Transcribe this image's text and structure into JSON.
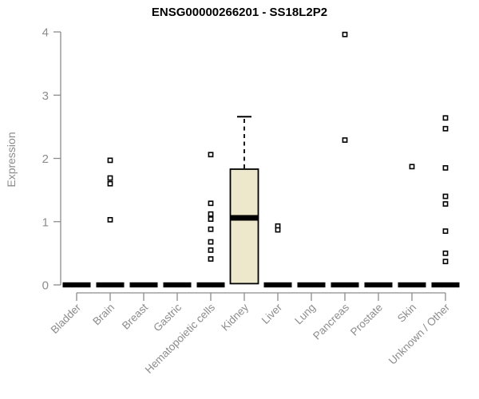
{
  "chart_data": {
    "type": "boxplot",
    "title": "ENSG00000266201 - SS18L2P2",
    "ylabel": "Expression",
    "xlabel": "",
    "ylim": [
      0,
      4
    ],
    "yticks": [
      0,
      1,
      2,
      3,
      4
    ],
    "grid": false,
    "legend": "none",
    "categories": [
      "Bladder",
      "Brain",
      "Breast",
      "Gastric",
      "Hematopoietic cells",
      "Kidney",
      "Liver",
      "Lung",
      "Pancreas",
      "Prostate",
      "Skin",
      "Unknown / Other"
    ],
    "series": [
      {
        "category": "Bladder",
        "q1": 0,
        "median": 0,
        "q3": 0,
        "whisker_low": 0,
        "whisker_high": 0,
        "outliers": []
      },
      {
        "category": "Brain",
        "q1": 0,
        "median": 0,
        "q3": 0,
        "whisker_low": 0,
        "whisker_high": 0,
        "outliers": [
          1.97,
          1.69,
          1.6,
          1.03
        ]
      },
      {
        "category": "Breast",
        "q1": 0,
        "median": 0,
        "q3": 0,
        "whisker_low": 0,
        "whisker_high": 0,
        "outliers": []
      },
      {
        "category": "Gastric",
        "q1": 0,
        "median": 0,
        "q3": 0,
        "whisker_low": 0,
        "whisker_high": 0,
        "outliers": []
      },
      {
        "category": "Hematopoietic cells",
        "q1": 0,
        "median": 0,
        "q3": 0,
        "whisker_low": 0,
        "whisker_high": 0,
        "outliers": [
          2.06,
          1.29,
          1.12,
          1.04,
          0.88,
          0.68,
          0.55,
          0.41
        ]
      },
      {
        "category": "Kidney",
        "q1": 0.02,
        "median": 1.06,
        "q3": 1.83,
        "whisker_low": 0.02,
        "whisker_high": 2.66,
        "outliers": []
      },
      {
        "category": "Liver",
        "q1": 0,
        "median": 0,
        "q3": 0,
        "whisker_low": 0,
        "whisker_high": 0,
        "outliers": [
          0.93,
          0.87
        ]
      },
      {
        "category": "Lung",
        "q1": 0,
        "median": 0,
        "q3": 0,
        "whisker_low": 0,
        "whisker_high": 0,
        "outliers": []
      },
      {
        "category": "Pancreas",
        "q1": 0,
        "median": 0,
        "q3": 0,
        "whisker_low": 0,
        "whisker_high": 0,
        "outliers": [
          3.96,
          2.29
        ]
      },
      {
        "category": "Prostate",
        "q1": 0,
        "median": 0,
        "q3": 0,
        "whisker_low": 0,
        "whisker_high": 0,
        "outliers": []
      },
      {
        "category": "Skin",
        "q1": 0,
        "median": 0,
        "q3": 0,
        "whisker_low": 0,
        "whisker_high": 0,
        "outliers": [
          1.87
        ]
      },
      {
        "category": "Unknown / Other",
        "q1": 0,
        "median": 0,
        "q3": 0,
        "whisker_low": 0,
        "whisker_high": 0,
        "outliers": [
          2.64,
          2.47,
          1.85,
          1.4,
          1.28,
          0.85,
          0.5,
          0.37
        ]
      }
    ],
    "colors": {
      "box_fill": "#EDE8CC",
      "box_stroke": "#000000",
      "median": "#000000",
      "whisker": "#000000",
      "outlier_stroke": "#000000",
      "outlier_fill": "#FFFFFF",
      "axis": "#8C8C8C",
      "tick_label": "#8C8C8C",
      "title": "#000000",
      "background": "#FFFFFF"
    }
  }
}
